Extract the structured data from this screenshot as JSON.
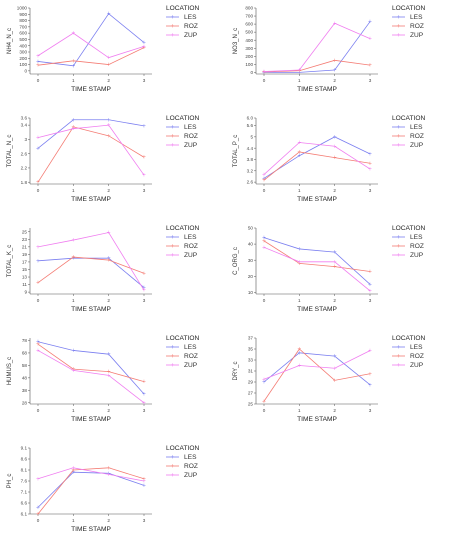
{
  "legend": {
    "title": "LOCATION",
    "series": [
      {
        "name": "LES",
        "color": "#7b7ff0"
      },
      {
        "name": "ROZ",
        "color": "#f47c74"
      },
      {
        "name": "ZUP",
        "color": "#f07ef0"
      }
    ]
  },
  "x_label": "TIME STAMP",
  "x_ticks": [
    "0",
    "1",
    "2",
    "3"
  ],
  "chart_data": [
    {
      "type": "line",
      "ylabel": "NH4_N_c",
      "ylim": [
        -50,
        1000
      ],
      "yticks": [
        "0",
        "100",
        "200",
        "300",
        "400",
        "500",
        "600",
        "700",
        "800",
        "900",
        "1000"
      ],
      "categories": [
        "0",
        "1",
        "2",
        "3"
      ],
      "series": [
        {
          "name": "LES",
          "values": [
            150,
            80,
            910,
            450
          ]
        },
        {
          "name": "ROZ",
          "values": [
            90,
            160,
            100,
            370
          ]
        },
        {
          "name": "ZUP",
          "values": [
            240,
            600,
            210,
            390
          ]
        }
      ]
    },
    {
      "type": "line",
      "ylabel": "NO3_N_c",
      "ylim": [
        -20,
        800
      ],
      "yticks": [
        "0",
        "100",
        "200",
        "300",
        "400",
        "500",
        "600",
        "700",
        "800"
      ],
      "categories": [
        "0",
        "1",
        "2",
        "3"
      ],
      "series": [
        {
          "name": "LES",
          "values": [
            0,
            0,
            30,
            630
          ]
        },
        {
          "name": "ROZ",
          "values": [
            5,
            20,
            150,
            90
          ]
        },
        {
          "name": "ZUP",
          "values": [
            10,
            30,
            610,
            420
          ]
        }
      ]
    },
    {
      "type": "line",
      "ylabel": "TOTAL_N_c",
      "ylim": [
        1.75,
        3.6
      ],
      "yticks": [
        "1.8",
        "2.2",
        "2.6",
        "3",
        "3.4",
        "3.6"
      ],
      "categories": [
        "0",
        "1",
        "2",
        "3"
      ],
      "series": [
        {
          "name": "LES",
          "values": [
            2.75,
            3.55,
            3.55,
            3.38
          ]
        },
        {
          "name": "ROZ",
          "values": [
            1.8,
            3.35,
            3.1,
            2.5
          ]
        },
        {
          "name": "ZUP",
          "values": [
            3.05,
            3.3,
            3.4,
            2.0
          ]
        }
      ]
    },
    {
      "type": "line",
      "ylabel": "TOTAL_P_c",
      "ylim": [
        2.5,
        6.0
      ],
      "yticks": [
        "2.6",
        "3.2",
        "3.8",
        "4.4",
        "5",
        "5.6",
        "6.0"
      ],
      "categories": [
        "0",
        "1",
        "2",
        "3"
      ],
      "series": [
        {
          "name": "LES",
          "values": [
            2.8,
            4.0,
            5.0,
            4.1
          ]
        },
        {
          "name": "ROZ",
          "values": [
            2.7,
            4.2,
            3.9,
            3.6
          ]
        },
        {
          "name": "ZUP",
          "values": [
            3.0,
            4.7,
            4.5,
            3.3
          ]
        }
      ]
    },
    {
      "type": "line",
      "ylabel": "TOTAL_K_c",
      "ylim": [
        8.5,
        26
      ],
      "yticks": [
        "9",
        "11",
        "13",
        "15",
        "17",
        "19",
        "21",
        "23",
        "25"
      ],
      "categories": [
        "0",
        "1",
        "2",
        "3"
      ],
      "series": [
        {
          "name": "LES",
          "values": [
            17.3,
            18.0,
            18.0,
            10.2
          ]
        },
        {
          "name": "ROZ",
          "values": [
            11.5,
            18.3,
            17.5,
            14.0
          ]
        },
        {
          "name": "ZUP",
          "values": [
            21.0,
            22.8,
            24.8,
            9.5
          ]
        }
      ]
    },
    {
      "type": "line",
      "ylabel": "C_ORG_c",
      "ylim": [
        9,
        50
      ],
      "yticks": [
        "10",
        "20",
        "30",
        "40",
        "50"
      ],
      "categories": [
        "0",
        "1",
        "2",
        "3"
      ],
      "series": [
        {
          "name": "LES",
          "values": [
            44,
            37,
            35,
            15
          ]
        },
        {
          "name": "ROZ",
          "values": [
            42,
            28,
            26,
            23
          ]
        },
        {
          "name": "ZUP",
          "values": [
            38,
            29,
            29,
            11
          ]
        }
      ]
    },
    {
      "type": "line",
      "ylabel": "HUMUS_c",
      "ylim": [
        27,
        80
      ],
      "yticks": [
        "28",
        "38",
        "48",
        "58",
        "68",
        "78"
      ],
      "categories": [
        "0",
        "1",
        "2",
        "3"
      ],
      "series": [
        {
          "name": "LES",
          "values": [
            77,
            70,
            67,
            35
          ]
        },
        {
          "name": "ROZ",
          "values": [
            75,
            55,
            53,
            45
          ]
        },
        {
          "name": "ZUP",
          "values": [
            70,
            54,
            50,
            28
          ]
        }
      ]
    },
    {
      "type": "line",
      "ylabel": "DRY_c",
      "ylim": [
        25,
        37
      ],
      "yticks": [
        "25",
        "27",
        "29",
        "31",
        "33",
        "35",
        "37"
      ],
      "categories": [
        "0",
        "1",
        "2",
        "3"
      ],
      "series": [
        {
          "name": "LES",
          "values": [
            29.0,
            34.3,
            33.7,
            28.5
          ]
        },
        {
          "name": "ROZ",
          "values": [
            25.5,
            35.0,
            29.3,
            30.5
          ]
        },
        {
          "name": "ZUP",
          "values": [
            29.5,
            32.0,
            31.5,
            34.7
          ]
        }
      ]
    },
    {
      "type": "line",
      "ylabel": "PH_c",
      "ylim": [
        6.1,
        9.1
      ],
      "yticks": [
        "6.1",
        "6.6",
        "7.1",
        "7.6",
        "8.1",
        "8.6",
        "9.1"
      ],
      "categories": [
        "0",
        "1",
        "2",
        "3"
      ],
      "series": [
        {
          "name": "LES",
          "values": [
            6.4,
            8.0,
            7.95,
            7.4
          ]
        },
        {
          "name": "ROZ",
          "values": [
            6.1,
            8.1,
            8.2,
            7.7
          ]
        },
        {
          "name": "ZUP",
          "values": [
            7.7,
            8.2,
            7.9,
            7.6
          ]
        }
      ]
    }
  ]
}
